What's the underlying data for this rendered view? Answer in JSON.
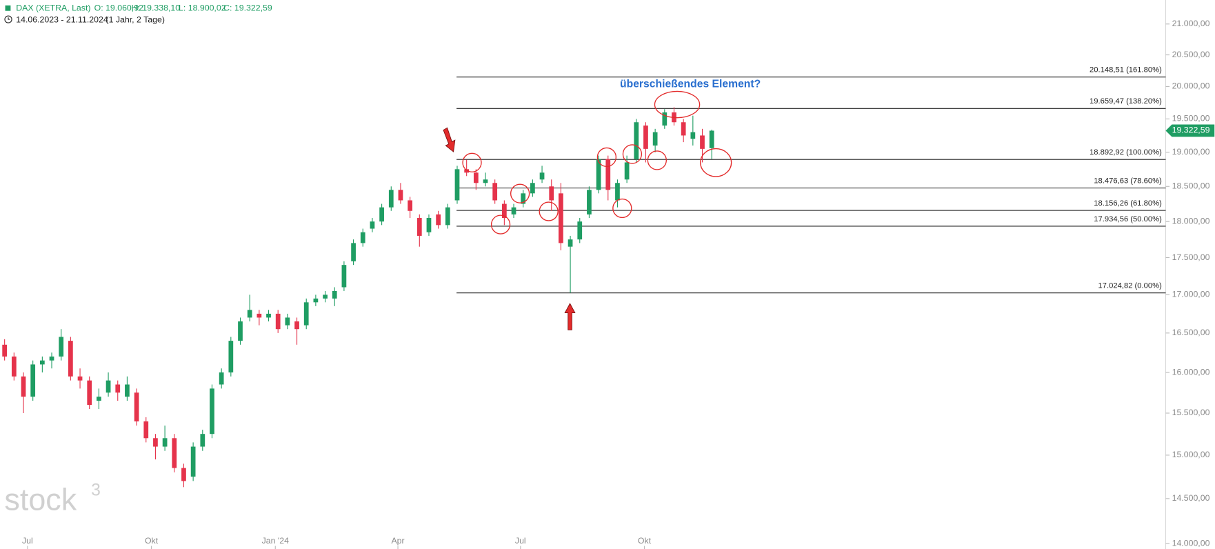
{
  "chart_data": {
    "type": "candlestick",
    "title": "DAX (XETRA, Last)",
    "ohlc_labels": [
      "O: 19.060,92",
      "H: 19.338,10",
      "L: 18.900,02",
      "C: 19.322,59"
    ],
    "subtitle": [
      "14.06.2023 - 21.11.2024",
      "(1 Jahr, 2 Tage)"
    ],
    "annotation": "überschießendes Element?",
    "watermark": [
      "stock",
      "3"
    ],
    "log_scale": true,
    "up_color": "#1f9d63",
    "down_color": "#e5334b",
    "xlim": [
      "2023-06-11",
      "2025-10-23"
    ],
    "xticks": [
      {
        "value": "2023-07-01",
        "label": "Jul"
      },
      {
        "value": "2023-10-01",
        "label": "Okt"
      },
      {
        "value": "2024-01-01",
        "label": "Jan '24"
      },
      {
        "value": "2024-04-01",
        "label": "Apr"
      },
      {
        "value": "2024-07-01",
        "label": "Jul"
      },
      {
        "value": "2024-10-01",
        "label": "Okt"
      }
    ],
    "ylim": [
      13932,
      21397
    ],
    "yticks": [
      {
        "value": 21000,
        "label": "21.000,00"
      },
      {
        "value": 20500,
        "label": "20.500,00"
      },
      {
        "value": 20000,
        "label": "20.000,00"
      },
      {
        "value": 19500,
        "label": "19.500,00"
      },
      {
        "value": 19000,
        "label": "19.000,00"
      },
      {
        "value": 18500,
        "label": "18.500,00"
      },
      {
        "value": 18000,
        "label": "18.000,00"
      },
      {
        "value": 17500,
        "label": "17.500,00"
      },
      {
        "value": 17000,
        "label": "17.000,00"
      },
      {
        "value": 16500,
        "label": "16.500,00"
      },
      {
        "value": 16000,
        "label": "16.000,00"
      },
      {
        "value": 15500,
        "label": "15.500,00"
      },
      {
        "value": 15000,
        "label": "15.000,00"
      },
      {
        "value": 14500,
        "label": "14.500,00"
      },
      {
        "value": 14000,
        "label": "14.000,00"
      }
    ],
    "current_price": {
      "value": 19322.59,
      "label": "19.322,59"
    },
    "levels": [
      {
        "value": 20148.51,
        "label": "20.148,51 (161.80%)"
      },
      {
        "value": 19659.47,
        "label": "19.659,47 (138.20%)"
      },
      {
        "value": 18892.92,
        "label": "18.892,92 (100.00%)"
      },
      {
        "value": 18476.63,
        "label": "18.476,63 (78.60%)"
      },
      {
        "value": 18156.26,
        "label": "18.156,26 (61.80%)"
      },
      {
        "value": 17934.56,
        "label": "17.934,56 (50.00%)"
      },
      {
        "value": 17024.82,
        "label": "17.024,82 (0.00%)"
      }
    ],
    "series": [
      {
        "x": [
          "2023-06-14",
          "2023-06-21",
          "2023-06-28",
          "2023-07-05",
          "2023-07-12",
          "2023-07-19",
          "2023-07-26",
          "2023-08-02",
          "2023-08-09",
          "2023-08-16",
          "2023-08-23",
          "2023-08-30",
          "2023-09-06",
          "2023-09-13",
          "2023-09-20",
          "2023-09-27",
          "2023-10-04",
          "2023-10-11",
          "2023-10-18",
          "2023-10-25",
          "2023-11-01",
          "2023-11-08",
          "2023-11-15",
          "2023-11-22",
          "2023-11-29",
          "2023-12-06",
          "2023-12-13",
          "2023-12-20",
          "2023-12-27",
          "2024-01-03",
          "2024-01-10",
          "2024-01-17",
          "2024-01-24",
          "2024-01-31",
          "2024-02-07",
          "2024-02-14",
          "2024-02-21",
          "2024-02-28",
          "2024-03-06",
          "2024-03-13",
          "2024-03-20",
          "2024-03-27",
          "2024-04-03",
          "2024-04-10",
          "2024-04-17",
          "2024-04-24",
          "2024-05-01",
          "2024-05-08",
          "2024-05-15",
          "2024-05-22",
          "2024-05-29",
          "2024-06-05",
          "2024-06-12",
          "2024-06-19",
          "2024-06-26",
          "2024-07-03",
          "2024-07-10",
          "2024-07-17",
          "2024-07-24",
          "2024-07-31",
          "2024-08-07",
          "2024-08-14",
          "2024-08-21",
          "2024-08-28",
          "2024-09-04",
          "2024-09-11",
          "2024-09-18",
          "2024-09-25",
          "2024-10-02",
          "2024-10-09",
          "2024-10-16",
          "2024-10-23",
          "2024-10-30",
          "2024-11-06",
          "2024-11-13",
          "2024-11-20"
        ],
        "open": [
          16350,
          16200,
          15950,
          15700,
          16100,
          16150,
          16200,
          16400,
          15950,
          15900,
          15650,
          15750,
          15850,
          15700,
          15750,
          15400,
          15200,
          15100,
          15200,
          14850,
          14750,
          15100,
          15250,
          15850,
          16000,
          16400,
          16700,
          16750,
          16700,
          16750,
          16600,
          16650,
          16600,
          16900,
          16950,
          16950,
          17100,
          17450,
          17700,
          17900,
          18000,
          18200,
          18450,
          18300,
          18050,
          17850,
          18100,
          17950,
          18300,
          18750,
          18700,
          18550,
          18550,
          18250,
          18100,
          18250,
          18400,
          18600,
          18500,
          18400,
          17650,
          17750,
          18100,
          18450,
          18900,
          18300,
          18600,
          18900,
          19400,
          19100,
          19400,
          19600,
          19450,
          19200,
          19250,
          19060.92
        ],
        "high": [
          16420,
          16250,
          16000,
          16150,
          16200,
          16250,
          16550,
          16450,
          16050,
          15950,
          15800,
          16000,
          15900,
          15950,
          15800,
          15450,
          15250,
          15350,
          15250,
          14900,
          15150,
          15300,
          15850,
          16050,
          16450,
          16700,
          17000,
          16800,
          16800,
          16800,
          16750,
          16700,
          16950,
          17000,
          17050,
          17100,
          17450,
          17750,
          17900,
          18050,
          18250,
          18500,
          18550,
          18350,
          18100,
          18100,
          18150,
          18250,
          18800,
          18890,
          18750,
          18700,
          18600,
          18300,
          18250,
          18450,
          18600,
          18800,
          18600,
          18550,
          17800,
          18050,
          18500,
          18950,
          18950,
          18600,
          18950,
          19500,
          19450,
          19350,
          19650,
          19680,
          19500,
          19550,
          19350,
          19338.1
        ],
        "low": [
          16150,
          15900,
          15500,
          15650,
          16000,
          16050,
          16150,
          15900,
          15800,
          15550,
          15550,
          15700,
          15650,
          15650,
          15350,
          15150,
          14950,
          15050,
          14800,
          14630,
          14700,
          15050,
          15200,
          15800,
          15950,
          16350,
          16650,
          16600,
          16650,
          16500,
          16550,
          16350,
          16550,
          16850,
          16900,
          16850,
          17050,
          17400,
          17650,
          17850,
          17950,
          18150,
          18250,
          18050,
          17650,
          17800,
          17900,
          17900,
          18250,
          18650,
          18450,
          18500,
          18250,
          17950,
          18050,
          18200,
          18350,
          18550,
          18150,
          17600,
          17025,
          17700,
          18050,
          18400,
          18300,
          18200,
          18550,
          18850,
          18850,
          19000,
          19350,
          19400,
          19150,
          19100,
          18850,
          18900.02
        ],
        "close": [
          16200,
          15950,
          15700,
          16100,
          16150,
          16200,
          16450,
          15950,
          15900,
          15600,
          15700,
          15900,
          15750,
          15850,
          15400,
          15200,
          15100,
          15200,
          14850,
          14700,
          15100,
          15250,
          15800,
          16000,
          16400,
          16650,
          16800,
          16700,
          16750,
          16550,
          16700,
          16550,
          16900,
          16950,
          17000,
          17050,
          17400,
          17700,
          17850,
          18000,
          18200,
          18450,
          18300,
          18150,
          17800,
          18050,
          17950,
          18200,
          18750,
          18700,
          18550,
          18600,
          18300,
          18050,
          18200,
          18400,
          18550,
          18700,
          18300,
          17700,
          17750,
          18000,
          18450,
          18900,
          18450,
          18550,
          18850,
          19450,
          19050,
          19300,
          19600,
          19450,
          19250,
          19300,
          19050,
          19322.59
        ]
      }
    ]
  }
}
